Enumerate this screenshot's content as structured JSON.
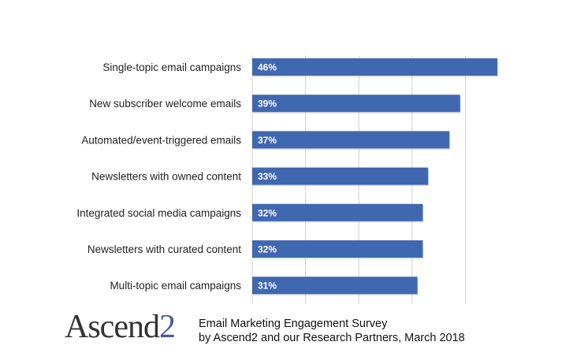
{
  "chart_data": {
    "type": "bar",
    "orientation": "horizontal",
    "categories": [
      "Single-topic email campaigns",
      "New subscriber welcome emails",
      "Automated/event-triggered emails",
      "Newsletters with owned content",
      "Integrated social media campaigns",
      "Newsletters with curated content",
      "Multi-topic email campaigns"
    ],
    "values": [
      46,
      39,
      37,
      33,
      32,
      32,
      31
    ],
    "data_labels": [
      "46%",
      "39%",
      "37%",
      "33%",
      "32%",
      "32%",
      "31%"
    ],
    "xlim": [
      0,
      50
    ],
    "grid_x": [
      10,
      20,
      30,
      40
    ],
    "grid": true,
    "bar_color": "#4068b0",
    "label_color": "#ffffff"
  },
  "footer": {
    "logo_text": "Ascend",
    "logo_digit": "2",
    "title": "Email Marketing Engagement Survey",
    "subtitle": "by Ascend2 and our Research Partners, March 2018"
  }
}
